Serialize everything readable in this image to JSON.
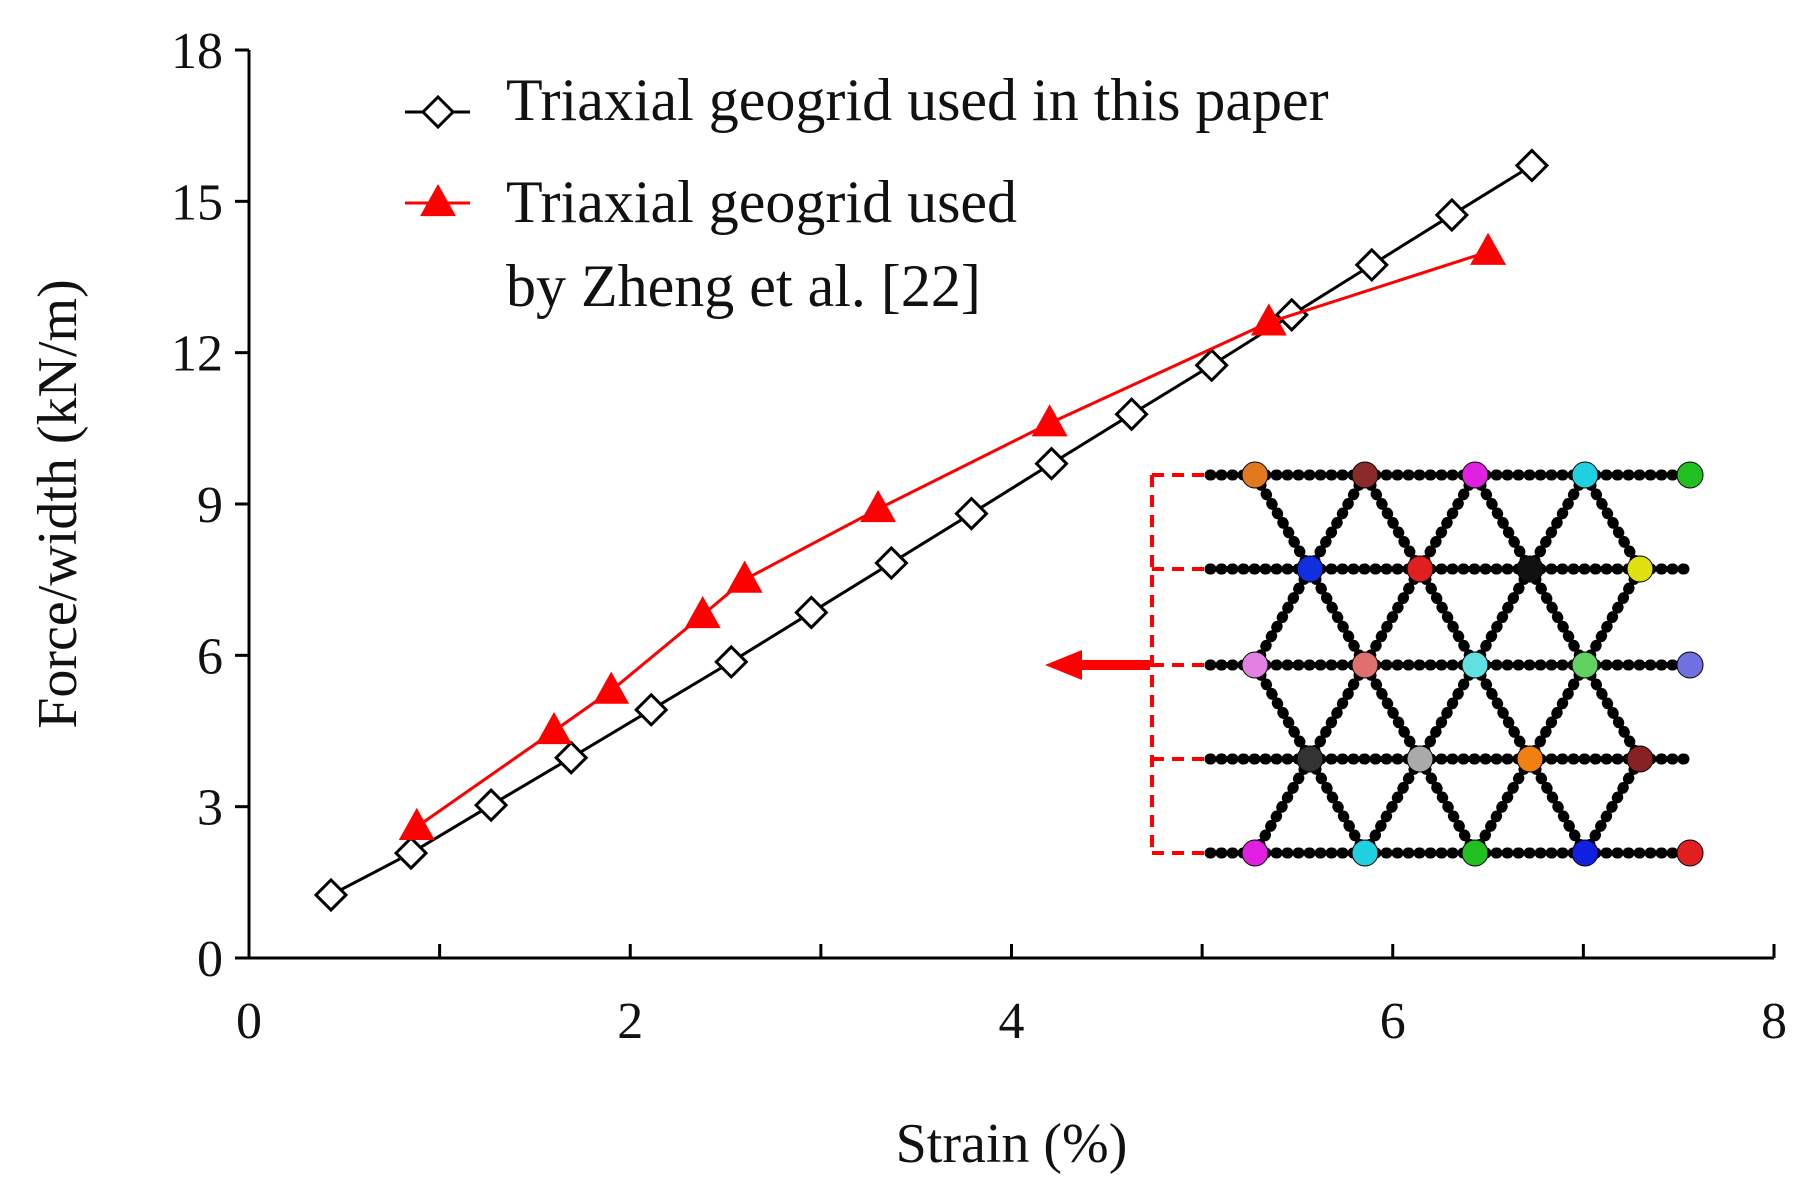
{
  "chart_data": {
    "type": "line",
    "xlabel": "Strain (%)",
    "ylabel": "Force/width (kN/m)",
    "xlim": [
      0,
      8
    ],
    "ylim": [
      0,
      18
    ],
    "x_ticks": [
      "0",
      "2",
      "4",
      "6",
      "8"
    ],
    "y_ticks": [
      "0",
      "3",
      "6",
      "9",
      "12",
      "15",
      "18"
    ],
    "grid": false,
    "legend_position": "top",
    "series": [
      {
        "name": "Triaxial geogrid used in this paper",
        "color": "#000000",
        "marker": "open-diamond",
        "x": [
          0.43,
          0.85,
          1.27,
          1.69,
          2.11,
          2.53,
          2.95,
          3.37,
          3.79,
          4.21,
          4.63,
          5.05,
          5.47,
          5.89,
          6.31,
          6.73
        ],
        "y": [
          1.25,
          2.08,
          3.03,
          3.97,
          4.92,
          5.87,
          6.85,
          7.83,
          8.81,
          9.8,
          10.78,
          11.75,
          12.75,
          13.74,
          14.73,
          15.71
        ]
      },
      {
        "name": "Triaxial geogrid used by Zheng et al. [22]",
        "name_lines": [
          "Triaxial geogrid used",
          "by Zheng et al. [22]"
        ],
        "color": "#ff0000",
        "marker": "filled-triangle",
        "x": [
          0.88,
          1.6,
          1.9,
          2.38,
          2.6,
          3.3,
          4.2,
          5.35,
          6.5
        ],
        "y": [
          2.6,
          4.5,
          5.3,
          6.8,
          7.5,
          8.9,
          10.6,
          12.6,
          14.0
        ]
      }
    ],
    "inset": {
      "description": "triaxial geogrid model",
      "arrow_color": "#ff0000"
    }
  }
}
